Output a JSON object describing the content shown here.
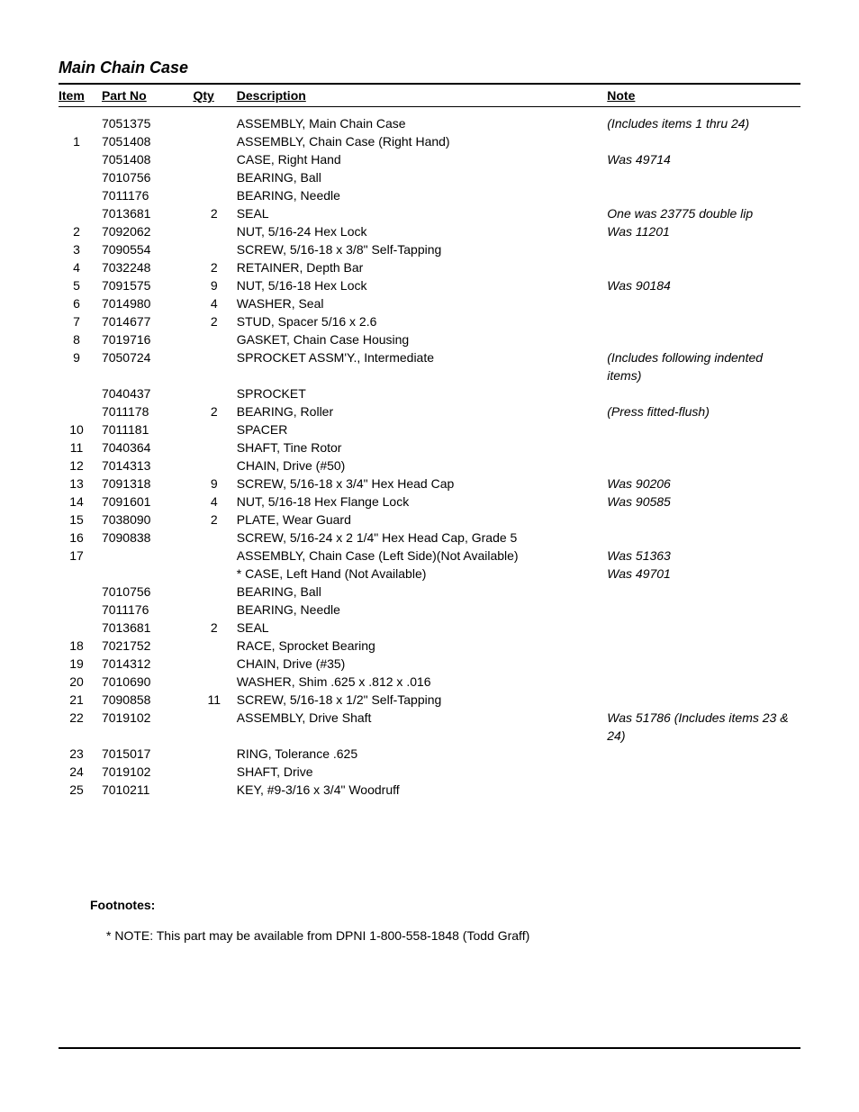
{
  "title": "Main Chain Case",
  "headers": {
    "item": "Item",
    "partno": "Part No",
    "qty": "Qty",
    "desc": "Description",
    "note": "Note"
  },
  "rows": [
    {
      "item": "",
      "partno": "7051375",
      "qty": "",
      "desc": "ASSEMBLY, Main Chain Case",
      "note": "(Includes items 1 thru 24)"
    },
    {
      "item": "1",
      "partno": "7051408",
      "qty": "",
      "desc": "ASSEMBLY, Chain Case (Right Hand)",
      "note": ""
    },
    {
      "item": "",
      "partno": "7051408",
      "qty": "",
      "desc": "CASE, Right Hand",
      "note": "Was 49714"
    },
    {
      "item": "",
      "partno": "7010756",
      "qty": "",
      "desc": "BEARING, Ball",
      "note": ""
    },
    {
      "item": "",
      "partno": "7011176",
      "qty": "",
      "desc": "BEARING, Needle",
      "note": ""
    },
    {
      "item": "",
      "partno": "7013681",
      "qty": "2",
      "desc": "SEAL",
      "note": "One was 23775 double lip"
    },
    {
      "item": "2",
      "partno": "7092062",
      "qty": "",
      "desc": "NUT, 5/16-24 Hex Lock",
      "note": "Was 11201"
    },
    {
      "item": "3",
      "partno": "7090554",
      "qty": "",
      "desc": "SCREW, 5/16-18 x 3/8\" Self-Tapping",
      "note": ""
    },
    {
      "item": "4",
      "partno": "7032248",
      "qty": "2",
      "desc": "RETAINER, Depth Bar",
      "note": ""
    },
    {
      "item": "5",
      "partno": "7091575",
      "qty": "9",
      "desc": "NUT, 5/16-18 Hex Lock",
      "note": "Was 90184"
    },
    {
      "item": "6",
      "partno": "7014980",
      "qty": "4",
      "desc": "WASHER, Seal",
      "note": ""
    },
    {
      "item": "7",
      "partno": "7014677",
      "qty": "2",
      "desc": "STUD, Spacer 5/16 x 2.6",
      "note": ""
    },
    {
      "item": "8",
      "partno": "7019716",
      "qty": "",
      "desc": "GASKET, Chain Case Housing",
      "note": ""
    },
    {
      "item": "9",
      "partno": "7050724",
      "qty": "",
      "desc": "SPROCKET ASSM'Y., Intermediate",
      "note": "(Includes following indented items)"
    },
    {
      "item": "",
      "partno": "7040437",
      "qty": "",
      "desc": "SPROCKET",
      "note": ""
    },
    {
      "item": "",
      "partno": "7011178",
      "qty": "2",
      "desc": "BEARING, Roller",
      "note": "(Press fitted-flush)"
    },
    {
      "item": "10",
      "partno": "7011181",
      "qty": "",
      "desc": "SPACER",
      "note": ""
    },
    {
      "item": "11",
      "partno": "7040364",
      "qty": "",
      "desc": "SHAFT, Tine Rotor",
      "note": ""
    },
    {
      "item": "12",
      "partno": "7014313",
      "qty": "",
      "desc": "CHAIN, Drive (#50)",
      "note": ""
    },
    {
      "item": "13",
      "partno": "7091318",
      "qty": "9",
      "desc": "SCREW, 5/16-18 x 3/4\" Hex Head Cap",
      "note": "Was 90206"
    },
    {
      "item": "14",
      "partno": "7091601",
      "qty": "4",
      "desc": "NUT, 5/16-18 Hex Flange Lock",
      "note": "Was 90585"
    },
    {
      "item": "15",
      "partno": "7038090",
      "qty": "2",
      "desc": "PLATE, Wear Guard",
      "note": ""
    },
    {
      "item": "16",
      "partno": "7090838",
      "qty": "",
      "desc": "SCREW, 5/16-24 x 2 1/4\" Hex Head Cap, Grade 5",
      "note": ""
    },
    {
      "item": "17",
      "partno": "",
      "qty": "",
      "desc": "ASSEMBLY, Chain Case (Left Side)(Not Available)",
      "note": "Was 51363"
    },
    {
      "item": "",
      "partno": "",
      "qty": "",
      "desc": "* CASE, Left Hand (Not Available)",
      "note": "Was 49701"
    },
    {
      "item": "",
      "partno": "7010756",
      "qty": "",
      "desc": "BEARING, Ball",
      "note": ""
    },
    {
      "item": "",
      "partno": "7011176",
      "qty": "",
      "desc": "BEARING, Needle",
      "note": ""
    },
    {
      "item": "",
      "partno": "7013681",
      "qty": "2",
      "desc": "SEAL",
      "note": ""
    },
    {
      "item": "18",
      "partno": "7021752",
      "qty": "",
      "desc": "RACE, Sprocket Bearing",
      "note": ""
    },
    {
      "item": "19",
      "partno": "7014312",
      "qty": "",
      "desc": "CHAIN, Drive (#35)",
      "note": ""
    },
    {
      "item": "20",
      "partno": "7010690",
      "qty": "",
      "desc": "WASHER, Shim .625 x .812 x .016",
      "note": ""
    },
    {
      "item": "21",
      "partno": "7090858",
      "qty": "11",
      "desc": "SCREW, 5/16-18 x 1/2\" Self-Tapping",
      "note": ""
    },
    {
      "item": "22",
      "partno": "7019102",
      "qty": "",
      "desc": "ASSEMBLY, Drive Shaft",
      "note": "Was 51786 (Includes items 23 & 24)"
    },
    {
      "item": "23",
      "partno": "7015017",
      "qty": "",
      "desc": "RING, Tolerance .625",
      "note": ""
    },
    {
      "item": "24",
      "partno": "7019102",
      "qty": "",
      "desc": "SHAFT, Drive",
      "note": ""
    },
    {
      "item": "25",
      "partno": "7010211",
      "qty": "",
      "desc": "KEY, #9-3/16 x 3/4\" Woodruff",
      "note": ""
    }
  ],
  "footnotes": {
    "title": "Footnotes:",
    "text": "* NOTE: This part may be available from DPNI 1-800-558-1848 (Todd Graff)"
  }
}
